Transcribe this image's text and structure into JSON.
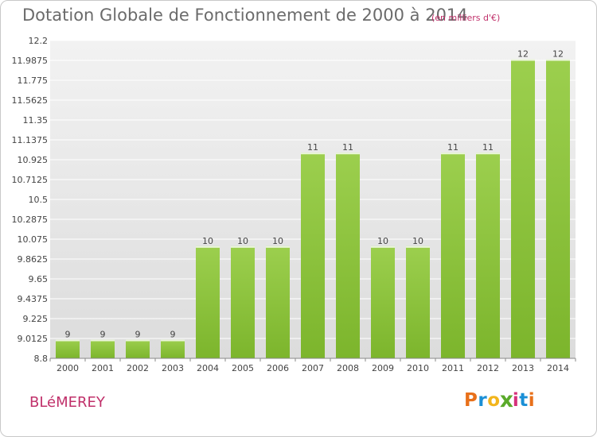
{
  "chart_data": {
    "type": "bar",
    "title": "Dotation Globale de Fonctionnement de 2000 à 2014",
    "subtitle": "(en milliers d'€)",
    "xlabel": "",
    "ylabel": "",
    "categories": [
      "2000",
      "2001",
      "2002",
      "2003",
      "2004",
      "2005",
      "2006",
      "2007",
      "2008",
      "2009",
      "2010",
      "2011",
      "2012",
      "2013",
      "2014"
    ],
    "values": [
      9,
      9,
      9,
      9,
      10,
      10,
      10,
      11,
      11,
      10,
      10,
      11,
      11,
      12,
      12
    ],
    "data_labels": [
      "9",
      "9",
      "9",
      "9",
      "10",
      "10",
      "10",
      "11",
      "11",
      "10",
      "10",
      "11",
      "11",
      "12",
      "12"
    ],
    "ylim": [
      8.8,
      12.2
    ],
    "yticks": [
      "12.2",
      "11.9875",
      "11.775",
      "11.5625",
      "11.35",
      "11.1375",
      "10.925",
      "10.7125",
      "10.5",
      "10.2875",
      "10.075",
      "9.8625",
      "9.65",
      "9.4375",
      "9.225",
      "9.0125",
      "8.8"
    ],
    "grid": true,
    "bar_color": "#7cb52c",
    "plot_background": "#e8e8e8"
  },
  "footer": {
    "place": "BLéMEREY",
    "logo": [
      "P",
      "r",
      "o",
      "x",
      "i",
      "t",
      "i"
    ],
    "logo_colors": [
      "#e8701a",
      "#1a8fd6",
      "#f2b51c",
      "#5aaa2a",
      "#d6307a",
      "#1a8fd6",
      "#e8701a"
    ]
  }
}
